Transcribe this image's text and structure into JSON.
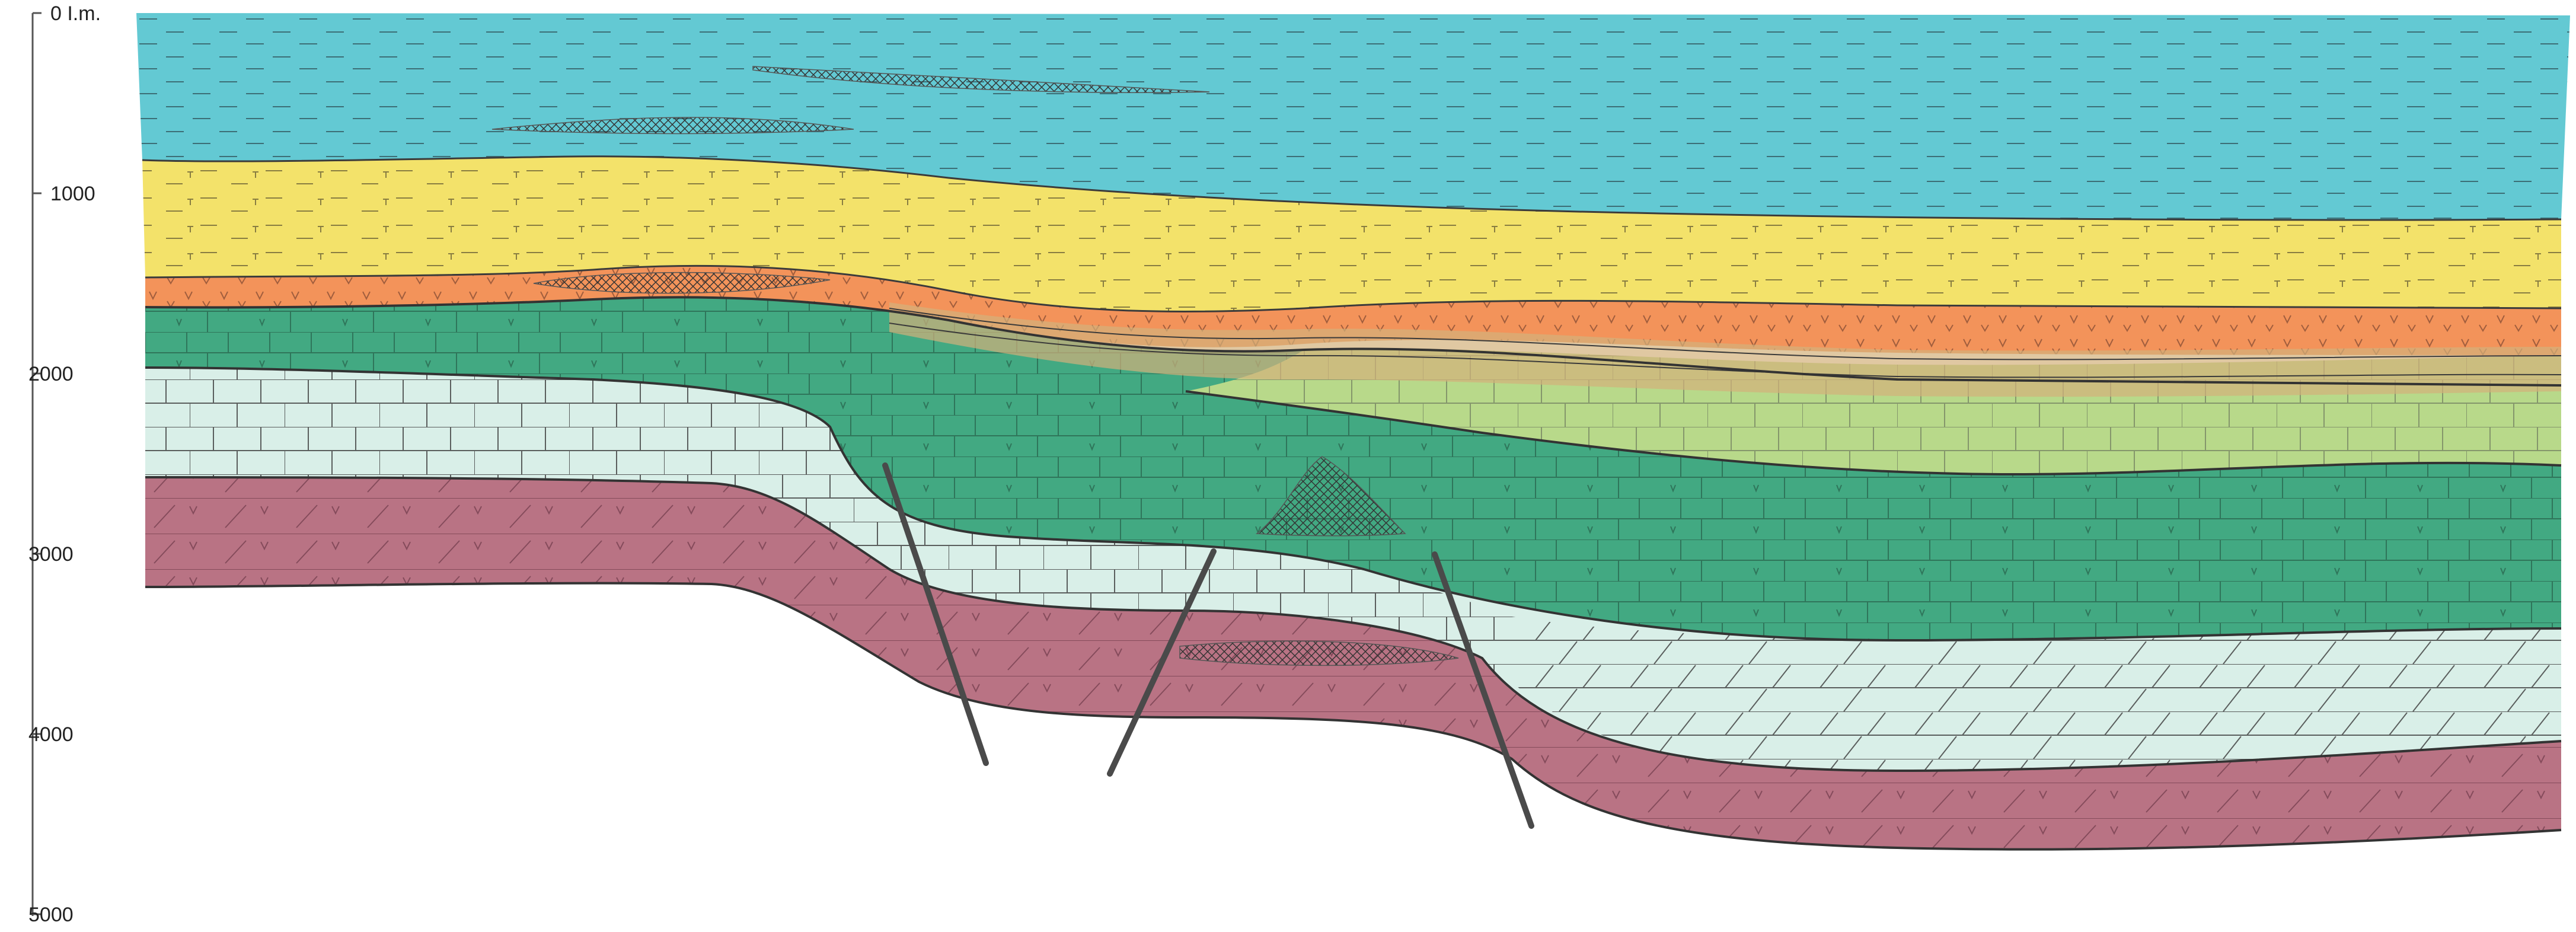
{
  "depth_axis": {
    "ticks": [
      {
        "value": 0,
        "label": "0 I.m."
      },
      {
        "value": 1000,
        "label": "1000"
      },
      {
        "value": 2000,
        "label": "2000"
      },
      {
        "value": 3000,
        "label": "3000"
      },
      {
        "value": 4000,
        "label": "4000"
      },
      {
        "value": 5000,
        "label": "5000"
      }
    ],
    "range": [
      0,
      5000
    ]
  },
  "colors": {
    "seawater": "#63c9d3",
    "upper_sediment": "#f3e26a",
    "unconformity_band": "#f3935a",
    "evaporite_dark": "#3f9f79",
    "evaporite_light": "#b8d98a",
    "carbonate_green": "#42a982",
    "carbonate_pale": "#d9efe8",
    "basement_red": "#b97384",
    "fault": "#4a4a4a",
    "paper": "#ffffff"
  },
  "faults_count_label": ""
}
